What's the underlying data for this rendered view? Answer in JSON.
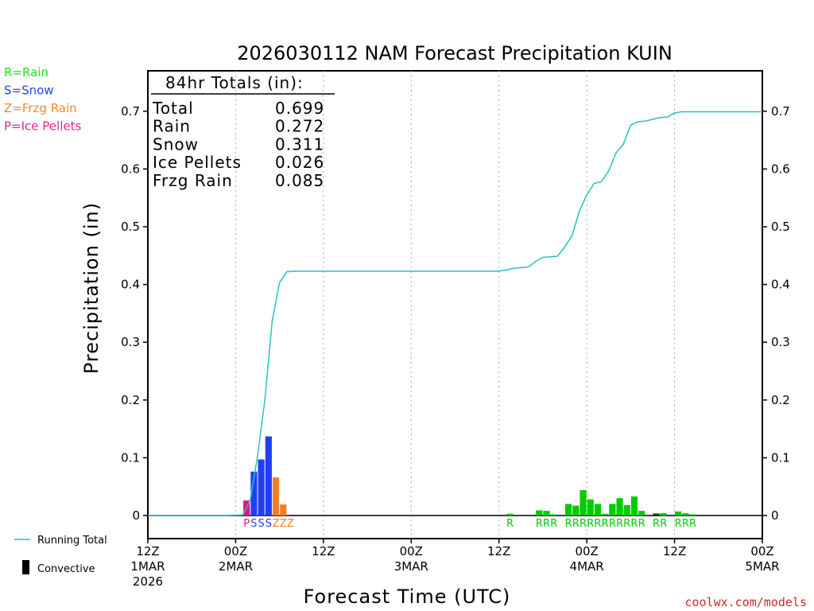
{
  "chart_data": {
    "type": "bar",
    "title": "2026030112 NAM Forecast Precipitation KUIN",
    "xlabel": "Forecast Time (UTC)",
    "ylabel": "Precipitation (in)",
    "ylim": [
      -0.04,
      0.77
    ],
    "xlim_hours": [
      0,
      84
    ],
    "y_ticks": [
      0,
      0.1,
      0.2,
      0.3,
      0.4,
      0.5,
      0.6,
      0.7
    ],
    "y_tick_labels": [
      "0",
      "0.1",
      "0.2",
      "0.3",
      "0.4",
      "0.5",
      "0.6",
      "0.7"
    ],
    "x_ticks": [
      {
        "hour": 0,
        "lines": [
          "12Z",
          "1MAR",
          "2026"
        ]
      },
      {
        "hour": 12,
        "lines": [
          "00Z",
          "2MAR"
        ]
      },
      {
        "hour": 24,
        "lines": [
          "12Z"
        ]
      },
      {
        "hour": 36,
        "lines": [
          "00Z",
          "3MAR"
        ]
      },
      {
        "hour": 48,
        "lines": [
          "12Z"
        ]
      },
      {
        "hour": 60,
        "lines": [
          "00Z",
          "4MAR"
        ]
      },
      {
        "hour": 72,
        "lines": [
          "12Z"
        ]
      },
      {
        "hour": 84,
        "lines": [
          "00Z",
          "5MAR"
        ]
      }
    ],
    "grid": "vertical dotted at 12-hour intervals",
    "bars": [
      {
        "hour": 14,
        "value": 0.026,
        "type": "P"
      },
      {
        "hour": 15,
        "value": 0.076,
        "type": "S"
      },
      {
        "hour": 16,
        "value": 0.097,
        "type": "S"
      },
      {
        "hour": 17,
        "value": 0.137,
        "type": "S"
      },
      {
        "hour": 18,
        "value": 0.066,
        "type": "Z"
      },
      {
        "hour": 19,
        "value": 0.019,
        "type": "Z"
      },
      {
        "hour": 20,
        "value": 0.0,
        "type": "Z"
      },
      {
        "hour": 50,
        "value": 0.003,
        "type": "R"
      },
      {
        "hour": 54,
        "value": 0.009,
        "type": "R"
      },
      {
        "hour": 55,
        "value": 0.008,
        "type": "R"
      },
      {
        "hour": 56,
        "value": 0.002,
        "type": "R"
      },
      {
        "hour": 58,
        "value": 0.02,
        "type": "R"
      },
      {
        "hour": 59,
        "value": 0.017,
        "type": "R"
      },
      {
        "hour": 60,
        "value": 0.044,
        "type": "R"
      },
      {
        "hour": 61,
        "value": 0.028,
        "type": "R"
      },
      {
        "hour": 62,
        "value": 0.02,
        "type": "R"
      },
      {
        "hour": 63,
        "value": 0.003,
        "type": "R"
      },
      {
        "hour": 64,
        "value": 0.02,
        "type": "R"
      },
      {
        "hour": 65,
        "value": 0.03,
        "type": "R"
      },
      {
        "hour": 66,
        "value": 0.018,
        "type": "R"
      },
      {
        "hour": 67,
        "value": 0.033,
        "type": "R"
      },
      {
        "hour": 68,
        "value": 0.008,
        "type": "R"
      },
      {
        "hour": 70,
        "value": 0.004,
        "type": "R"
      },
      {
        "hour": 71,
        "value": 0.004,
        "type": "R"
      },
      {
        "hour": 73,
        "value": 0.007,
        "type": "R"
      },
      {
        "hour": 74,
        "value": 0.004,
        "type": "R"
      },
      {
        "hour": 75,
        "value": 0.002,
        "type": "R"
      }
    ],
    "convective_bars": [
      {
        "hour": 70,
        "value": 0.002
      }
    ],
    "type_labels": [
      {
        "hour": 14,
        "letter": "P"
      },
      {
        "hour": 15,
        "letter": "S"
      },
      {
        "hour": 16,
        "letter": "S"
      },
      {
        "hour": 17,
        "letter": "S"
      },
      {
        "hour": 18,
        "letter": "Z"
      },
      {
        "hour": 19,
        "letter": "Z"
      },
      {
        "hour": 20,
        "letter": "Z"
      },
      {
        "hour": 50,
        "letter": "R"
      },
      {
        "hour": 54,
        "letter": "R"
      },
      {
        "hour": 55,
        "letter": "R"
      },
      {
        "hour": 56,
        "letter": "R"
      },
      {
        "hour": 58,
        "letter": "R"
      },
      {
        "hour": 59,
        "letter": "R"
      },
      {
        "hour": 60,
        "letter": "R"
      },
      {
        "hour": 61,
        "letter": "R"
      },
      {
        "hour": 62,
        "letter": "R"
      },
      {
        "hour": 63,
        "letter": "R"
      },
      {
        "hour": 64,
        "letter": "R"
      },
      {
        "hour": 65,
        "letter": "R"
      },
      {
        "hour": 66,
        "letter": "R"
      },
      {
        "hour": 67,
        "letter": "R"
      },
      {
        "hour": 68,
        "letter": "R"
      },
      {
        "hour": 70,
        "letter": "R"
      },
      {
        "hour": 71,
        "letter": "R"
      },
      {
        "hour": 73,
        "letter": "R"
      },
      {
        "hour": 74,
        "letter": "R"
      },
      {
        "hour": 75,
        "letter": "R"
      }
    ],
    "running_total": [
      {
        "hour": 0,
        "value": 0.0
      },
      {
        "hour": 10,
        "value": 0.0
      },
      {
        "hour": 13,
        "value": 0.001
      },
      {
        "hour": 14,
        "value": 0.027
      },
      {
        "hour": 15,
        "value": 0.103
      },
      {
        "hour": 16,
        "value": 0.2
      },
      {
        "hour": 17,
        "value": 0.337
      },
      {
        "hour": 18,
        "value": 0.403
      },
      {
        "hour": 19,
        "value": 0.422
      },
      {
        "hour": 20,
        "value": 0.423
      },
      {
        "hour": 48,
        "value": 0.423
      },
      {
        "hour": 49,
        "value": 0.425
      },
      {
        "hour": 50,
        "value": 0.428
      },
      {
        "hour": 52,
        "value": 0.43
      },
      {
        "hour": 53,
        "value": 0.44
      },
      {
        "hour": 54,
        "value": 0.447
      },
      {
        "hour": 56,
        "value": 0.449
      },
      {
        "hour": 57,
        "value": 0.465
      },
      {
        "hour": 58,
        "value": 0.485
      },
      {
        "hour": 59,
        "value": 0.527
      },
      {
        "hour": 60,
        "value": 0.555
      },
      {
        "hour": 61,
        "value": 0.575
      },
      {
        "hour": 62,
        "value": 0.578
      },
      {
        "hour": 63,
        "value": 0.597
      },
      {
        "hour": 64,
        "value": 0.628
      },
      {
        "hour": 65,
        "value": 0.643
      },
      {
        "hour": 66,
        "value": 0.676
      },
      {
        "hour": 67,
        "value": 0.682
      },
      {
        "hour": 68,
        "value": 0.683
      },
      {
        "hour": 70,
        "value": 0.689
      },
      {
        "hour": 71,
        "value": 0.69
      },
      {
        "hour": 72,
        "value": 0.697
      },
      {
        "hour": 73,
        "value": 0.699
      },
      {
        "hour": 84,
        "value": 0.699
      }
    ],
    "totals_box": {
      "header": "84hr Totals (in):",
      "rows": [
        {
          "label": "Total",
          "value": "0.699"
        },
        {
          "label": "Rain",
          "value": "0.272"
        },
        {
          "label": "Snow",
          "value": "0.311"
        },
        {
          "label": "Ice Pellets",
          "value": "0.026"
        },
        {
          "label": "Frzg Rain",
          "value": "0.085"
        }
      ]
    },
    "type_legend": [
      {
        "text": "R=Rain",
        "color": "#22dd22"
      },
      {
        "text": "S=Snow",
        "color": "#2244ee"
      },
      {
        "text": "Z=Frzg Rain",
        "color": "#ee8833"
      },
      {
        "text": "P=Ice Pellets",
        "color": "#ee2288"
      }
    ],
    "line_legend": {
      "running_total": "Running Total",
      "convective": "Convective"
    },
    "colors": {
      "R": "#00cc00",
      "S": "#1f3ff5",
      "Z": "#f07f2a",
      "P": "#e0157a",
      "running_total": "#22c3c3",
      "convective": "#000000",
      "credit": "#cc2a2a"
    }
  },
  "credit": "coolwx.com/models"
}
